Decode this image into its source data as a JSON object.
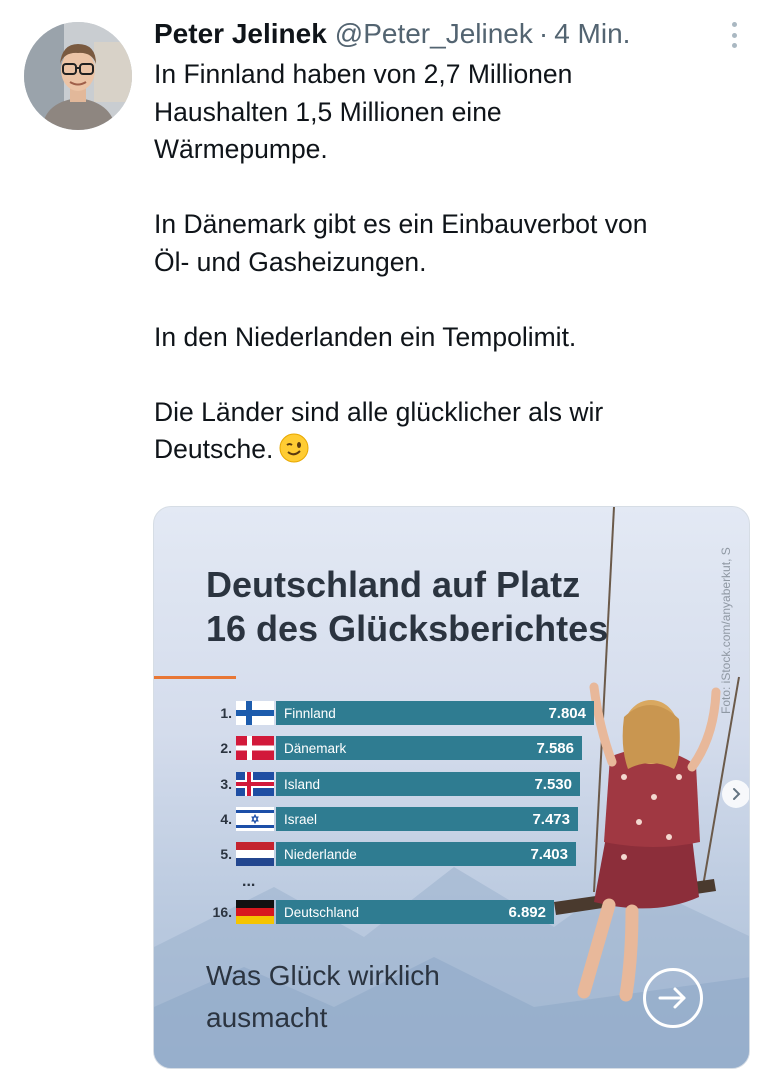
{
  "tweet": {
    "author_name": "Peter Jelinek",
    "handle": "@Peter_Jelinek",
    "separator": "·",
    "time": "4 Min.",
    "paragraphs": [
      [
        "In Finnland haben von 2,7 Millionen",
        "Haushalten 1,5 Millionen eine",
        "Wärmepumpe."
      ],
      [
        "In Dänemark gibt es ein Einbauverbot von",
        "Öl- und Gasheizungen."
      ],
      [
        "In den Niederlanden ein Tempolimit."
      ],
      [
        "Die Länder sind alle glücklicher als wir",
        "Deutsche."
      ]
    ],
    "emoji": "wink-emoji"
  },
  "card": {
    "title_line1": "Deutschland auf Platz",
    "title_line2": "16 des Glücksberichtes",
    "photo_credit": "Foto: iStock.com/anyaberkut, S",
    "ranking": [
      {
        "rank": "1.",
        "country": "Finnland",
        "value": "7.804",
        "flag": "finland"
      },
      {
        "rank": "2.",
        "country": "Dänemark",
        "value": "7.586",
        "flag": "denmark"
      },
      {
        "rank": "3.",
        "country": "Island",
        "value": "7.530",
        "flag": "iceland"
      },
      {
        "rank": "4.",
        "country": "Israel",
        "value": "7.473",
        "flag": "israel"
      },
      {
        "rank": "5.",
        "country": "Niederlande",
        "value": "7.403",
        "flag": "netherlands"
      },
      {
        "rank": "16.",
        "country": "Deutschland",
        "value": "6.892",
        "flag": "germany"
      }
    ],
    "ellipsis": "...",
    "subline_line1": "Was Glück wirklich",
    "subline_line2": "ausmacht"
  },
  "colors": {
    "bar": "#2f7c91",
    "accent": "#e87735",
    "text_dark": "#2b3440",
    "muted": "#536471"
  }
}
